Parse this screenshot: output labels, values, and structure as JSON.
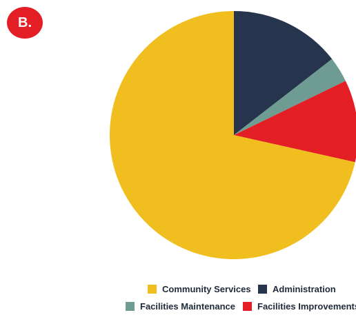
{
  "badge": {
    "label": "B."
  },
  "colors": {
    "community_services": "#f0bf1f",
    "administration": "#26344d",
    "facilities_maintenance": "#6f9c92",
    "facilities_improvements": "#e31e25"
  },
  "chart_data": {
    "type": "pie",
    "title": "",
    "start": "12 o'clock",
    "direction": "clockwise",
    "legend_position": "bottom-right",
    "series": [
      {
        "name": "Community Services",
        "value": 71.5,
        "color": "#f0bf1f"
      },
      {
        "name": "Administration",
        "value": 14.5,
        "color": "#26344d"
      },
      {
        "name": "Facilities Maintenance",
        "value": 3.3,
        "color": "#6f9c92"
      },
      {
        "name": "Facilities Improvements",
        "value": 10.7,
        "color": "#e31e25"
      }
    ],
    "draw_order": [
      "Administration",
      "Facilities Maintenance",
      "Facilities Improvements",
      "Community Services"
    ]
  }
}
